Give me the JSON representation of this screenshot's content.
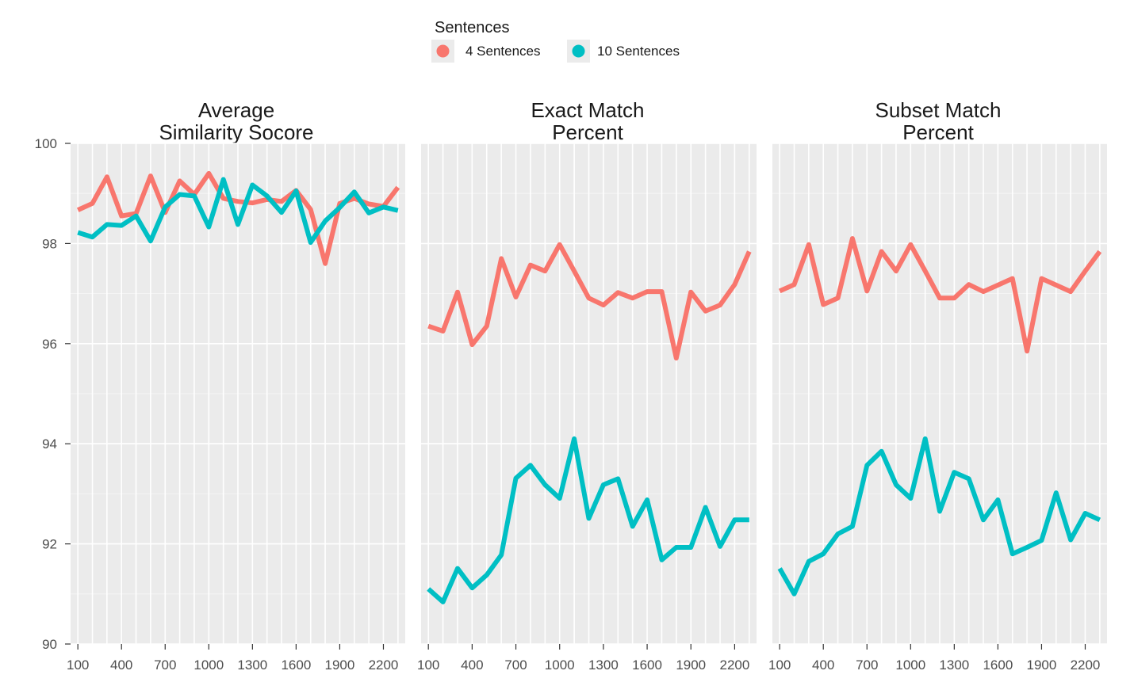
{
  "chart_data": {
    "type": "line",
    "legend": {
      "title": "Sentences",
      "position": "top",
      "entries": [
        {
          "label": "4 Sentences",
          "color": "#f8766d"
        },
        {
          "label": "10 Sentences",
          "color": "#00bfc4"
        }
      ]
    },
    "x": [
      100,
      200,
      300,
      400,
      500,
      600,
      700,
      800,
      900,
      1000,
      1100,
      1200,
      1300,
      1400,
      1500,
      1600,
      1700,
      1800,
      1900,
      2000,
      2100,
      2200,
      2300
    ],
    "xlim": [
      50,
      2350
    ],
    "x_ticks": [
      100,
      400,
      700,
      1000,
      1300,
      1600,
      1900,
      2200
    ],
    "ylim": [
      90,
      100
    ],
    "y_ticks": [
      90,
      92,
      94,
      96,
      98,
      100
    ],
    "grid": true,
    "panels": [
      {
        "title": [
          "Average",
          "Similarity Socore"
        ],
        "series": [
          {
            "name": "4 Sentences",
            "values": [
              98.67,
              98.8,
              99.33,
              98.55,
              98.6,
              99.35,
              98.62,
              99.25,
              98.98,
              99.4,
              98.9,
              98.84,
              98.81,
              98.88,
              98.84,
              99.06,
              98.68,
              97.6,
              98.8,
              98.9,
              98.79,
              98.74,
              99.12
            ]
          },
          {
            "name": "10 Sentences",
            "values": [
              98.22,
              98.13,
              98.38,
              98.36,
              98.55,
              98.05,
              98.73,
              98.98,
              98.95,
              98.33,
              99.28,
              98.38,
              99.17,
              98.95,
              98.62,
              99.05,
              98.02,
              98.45,
              98.72,
              99.03,
              98.61,
              98.73,
              98.66
            ]
          }
        ]
      },
      {
        "title": [
          "Exact Match",
          "Percent"
        ],
        "series": [
          {
            "name": "4 Sentences",
            "values": [
              96.35,
              96.25,
              97.03,
              95.98,
              96.35,
              97.7,
              96.93,
              97.57,
              97.45,
              97.98,
              97.45,
              96.91,
              96.77,
              97.02,
              96.91,
              97.04,
              97.04,
              95.71,
              97.03,
              96.65,
              96.77,
              97.18,
              97.84
            ]
          },
          {
            "name": "10 Sentences",
            "values": [
              91.1,
              90.84,
              91.51,
              91.12,
              91.38,
              91.78,
              93.31,
              93.57,
              93.18,
              92.91,
              94.1,
              92.51,
              93.18,
              93.3,
              92.35,
              92.88,
              91.68,
              91.93,
              91.93,
              92.73,
              91.95,
              92.48,
              92.48
            ]
          }
        ]
      },
      {
        "title": [
          "Subset Match",
          "Percent"
        ],
        "series": [
          {
            "name": "4 Sentences",
            "values": [
              97.05,
              97.18,
              97.98,
              96.78,
              96.91,
              98.1,
              97.05,
              97.84,
              97.45,
              97.98,
              97.45,
              96.91,
              96.91,
              97.18,
              97.04,
              97.17,
              97.3,
              95.85,
              97.3,
              97.17,
              97.04,
              97.45,
              97.84
            ]
          },
          {
            "name": "10 Sentences",
            "values": [
              91.51,
              91.0,
              91.65,
              91.8,
              92.2,
              92.35,
              93.57,
              93.85,
              93.18,
              92.91,
              94.1,
              92.65,
              93.43,
              93.3,
              92.48,
              92.88,
              91.8,
              91.93,
              92.07,
              93.02,
              92.08,
              92.61,
              92.48
            ]
          }
        ]
      }
    ]
  }
}
